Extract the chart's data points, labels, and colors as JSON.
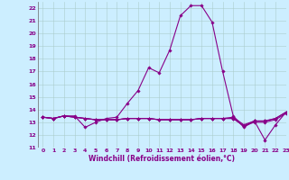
{
  "xlabel": "Windchill (Refroidissement éolien,°C)",
  "xlim": [
    -0.5,
    23
  ],
  "ylim": [
    11,
    22.5
  ],
  "xticks": [
    0,
    1,
    2,
    3,
    4,
    5,
    6,
    7,
    8,
    9,
    10,
    11,
    12,
    13,
    14,
    15,
    16,
    17,
    18,
    19,
    20,
    21,
    22,
    23
  ],
  "yticks": [
    11,
    12,
    13,
    14,
    15,
    16,
    17,
    18,
    19,
    20,
    21,
    22
  ],
  "background_color": "#cceeff",
  "grid_color": "#aacccc",
  "line_color": "#880088",
  "series": [
    [
      13.4,
      13.3,
      13.5,
      13.5,
      12.6,
      13.0,
      13.3,
      13.4,
      14.5,
      15.5,
      17.3,
      16.9,
      18.7,
      21.4,
      22.2,
      22.2,
      20.9,
      17.0,
      13.5,
      12.6,
      13.1,
      11.6,
      12.8,
      13.8
    ],
    [
      13.4,
      13.3,
      13.5,
      13.4,
      13.3,
      13.2,
      13.2,
      13.2,
      13.3,
      13.3,
      13.3,
      13.2,
      13.2,
      13.2,
      13.2,
      13.3,
      13.3,
      13.3,
      13.3,
      12.7,
      13.1,
      13.1,
      13.3,
      13.8
    ],
    [
      13.4,
      13.3,
      13.5,
      13.4,
      13.3,
      13.2,
      13.2,
      13.2,
      13.3,
      13.3,
      13.3,
      13.2,
      13.2,
      13.2,
      13.2,
      13.3,
      13.3,
      13.3,
      13.3,
      12.7,
      13.0,
      13.0,
      13.2,
      13.7
    ],
    [
      13.4,
      13.3,
      13.5,
      13.4,
      13.3,
      13.2,
      13.2,
      13.2,
      13.3,
      13.3,
      13.3,
      13.2,
      13.2,
      13.2,
      13.2,
      13.3,
      13.3,
      13.3,
      13.4,
      12.8,
      13.1,
      13.1,
      13.3,
      13.8
    ]
  ],
  "marker": "D",
  "markersize": 1.8,
  "linewidth": 0.8,
  "tick_fontsize": 4.5,
  "label_fontsize": 5.5,
  "fig_width": 3.2,
  "fig_height": 2.0,
  "dpi": 100
}
